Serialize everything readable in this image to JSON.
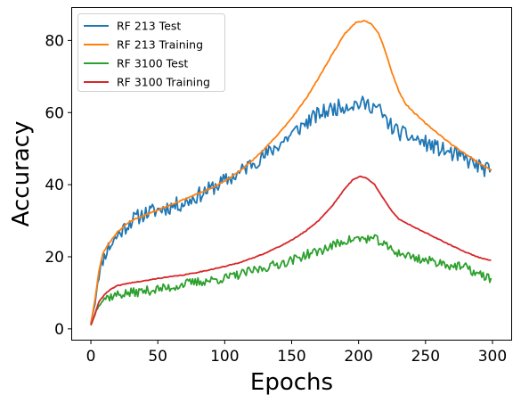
{
  "chart_data": {
    "type": "line",
    "xlabel": "Epochs",
    "ylabel": "Accuracy",
    "xlim": [
      -14,
      314
    ],
    "ylim": [
      -3,
      89
    ],
    "xticks": [
      0,
      50,
      100,
      150,
      200,
      250,
      300
    ],
    "yticks": [
      0,
      20,
      40,
      60,
      80
    ],
    "grid": false,
    "legend_position": "top-left",
    "series": [
      {
        "name": "RF 213 Test",
        "color": "#1f77b4",
        "noise": 2.2,
        "seed": 11,
        "keypoints": [
          [
            0,
            1.5
          ],
          [
            3,
            7
          ],
          [
            5,
            13
          ],
          [
            8,
            18
          ],
          [
            12,
            22
          ],
          [
            20,
            26
          ],
          [
            30,
            30
          ],
          [
            40,
            32
          ],
          [
            50,
            33
          ],
          [
            60,
            34
          ],
          [
            70,
            35
          ],
          [
            80,
            37
          ],
          [
            90,
            39
          ],
          [
            100,
            41
          ],
          [
            110,
            43
          ],
          [
            120,
            46
          ],
          [
            130,
            48
          ],
          [
            140,
            51
          ],
          [
            150,
            54
          ],
          [
            160,
            57
          ],
          [
            170,
            59.5
          ],
          [
            180,
            61
          ],
          [
            190,
            62
          ],
          [
            200,
            62.5
          ],
          [
            210,
            62
          ],
          [
            215,
            61
          ],
          [
            220,
            58
          ],
          [
            225,
            56
          ],
          [
            230,
            54.5
          ],
          [
            240,
            53
          ],
          [
            250,
            51.5
          ],
          [
            260,
            50
          ],
          [
            270,
            48.5
          ],
          [
            280,
            47
          ],
          [
            290,
            45
          ],
          [
            299,
            43.5
          ]
        ]
      },
      {
        "name": "RF 213 Training",
        "color": "#ff7f0e",
        "noise": 0.15,
        "seed": 23,
        "keypoints": [
          [
            0,
            1.5
          ],
          [
            3,
            8
          ],
          [
            6,
            16
          ],
          [
            9,
            21
          ],
          [
            14,
            24
          ],
          [
            20,
            27
          ],
          [
            30,
            30
          ],
          [
            40,
            31.5
          ],
          [
            50,
            33
          ],
          [
            60,
            34.5
          ],
          [
            70,
            36
          ],
          [
            80,
            37.5
          ],
          [
            90,
            39
          ],
          [
            100,
            41
          ],
          [
            110,
            43.5
          ],
          [
            120,
            46.5
          ],
          [
            130,
            50
          ],
          [
            140,
            54
          ],
          [
            150,
            58.5
          ],
          [
            160,
            63.5
          ],
          [
            170,
            69.5
          ],
          [
            180,
            76
          ],
          [
            190,
            82
          ],
          [
            198,
            85
          ],
          [
            205,
            85.5
          ],
          [
            210,
            84.5
          ],
          [
            215,
            82
          ],
          [
            220,
            77
          ],
          [
            225,
            71
          ],
          [
            230,
            66
          ],
          [
            235,
            62.5
          ],
          [
            240,
            60.5
          ],
          [
            250,
            57
          ],
          [
            260,
            54
          ],
          [
            270,
            51
          ],
          [
            280,
            48.5
          ],
          [
            290,
            46
          ],
          [
            299,
            44
          ]
        ]
      },
      {
        "name": "RF 3100 Test",
        "color": "#2ca02c",
        "noise": 1.3,
        "seed": 37,
        "keypoints": [
          [
            0,
            1
          ],
          [
            3,
            4
          ],
          [
            6,
            7
          ],
          [
            10,
            8.5
          ],
          [
            20,
            9.5
          ],
          [
            30,
            10
          ],
          [
            40,
            10.5
          ],
          [
            50,
            11
          ],
          [
            60,
            11.5
          ],
          [
            70,
            12.5
          ],
          [
            80,
            13
          ],
          [
            90,
            13.5
          ],
          [
            100,
            14
          ],
          [
            110,
            15
          ],
          [
            120,
            16
          ],
          [
            130,
            17
          ],
          [
            140,
            18
          ],
          [
            150,
            19
          ],
          [
            160,
            20.5
          ],
          [
            170,
            21.5
          ],
          [
            180,
            23
          ],
          [
            190,
            24.5
          ],
          [
            200,
            25
          ],
          [
            210,
            25
          ],
          [
            215,
            24.5
          ],
          [
            220,
            23
          ],
          [
            230,
            21
          ],
          [
            240,
            20
          ],
          [
            250,
            19
          ],
          [
            260,
            18.5
          ],
          [
            270,
            17.5
          ],
          [
            280,
            17
          ],
          [
            290,
            15
          ],
          [
            299,
            14
          ]
        ]
      },
      {
        "name": "RF 3100 Training",
        "color": "#d62728",
        "noise": 0.1,
        "seed": 41,
        "keypoints": [
          [
            0,
            1
          ],
          [
            3,
            4
          ],
          [
            6,
            7.5
          ],
          [
            10,
            9.5
          ],
          [
            15,
            11
          ],
          [
            20,
            12
          ],
          [
            30,
            12.8
          ],
          [
            40,
            13.3
          ],
          [
            50,
            14
          ],
          [
            60,
            14.5
          ],
          [
            70,
            15
          ],
          [
            80,
            15.7
          ],
          [
            90,
            16.5
          ],
          [
            100,
            17.3
          ],
          [
            110,
            18.3
          ],
          [
            120,
            19.5
          ],
          [
            130,
            21
          ],
          [
            140,
            22.7
          ],
          [
            150,
            24.6
          ],
          [
            160,
            27
          ],
          [
            170,
            30
          ],
          [
            180,
            34
          ],
          [
            190,
            39
          ],
          [
            196,
            41.5
          ],
          [
            201,
            42.3
          ],
          [
            206,
            41.8
          ],
          [
            212,
            40
          ],
          [
            218,
            36.5
          ],
          [
            225,
            32.5
          ],
          [
            230,
            30.5
          ],
          [
            240,
            28.5
          ],
          [
            250,
            26.7
          ],
          [
            260,
            24.8
          ],
          [
            270,
            23
          ],
          [
            280,
            21.3
          ],
          [
            290,
            19.8
          ],
          [
            299,
            19
          ]
        ]
      }
    ]
  }
}
